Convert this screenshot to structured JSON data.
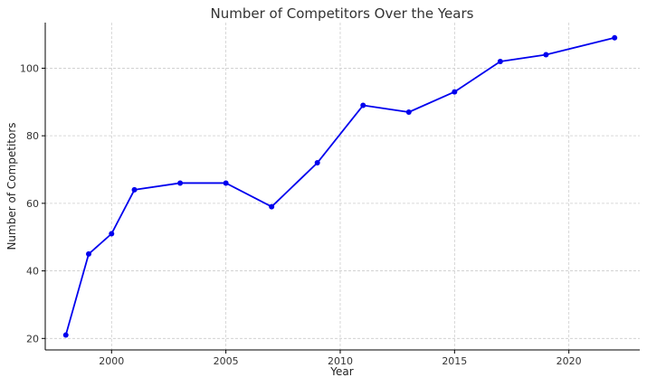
{
  "chart_data": {
    "type": "line",
    "title": "Number of Competitors Over the Years",
    "xlabel": "Year",
    "ylabel": "Number of Competitors",
    "xlim": [
      1997.1,
      2023.1
    ],
    "ylim": [
      16.6,
      113.5
    ],
    "xticks": [
      2000,
      2005,
      2010,
      2015,
      2020
    ],
    "yticks": [
      20,
      40,
      60,
      80,
      100
    ],
    "grid": true,
    "legend": "none",
    "series": [
      {
        "color": "#0000ee",
        "x": [
          1998,
          1999,
          2000,
          2001,
          2003,
          2005,
          2007,
          2009,
          2011,
          2013,
          2015,
          2017,
          2019,
          2022
        ],
        "values": [
          21,
          45,
          51,
          64,
          66,
          66,
          59,
          72,
          89,
          87,
          93,
          102,
          104,
          109
        ]
      }
    ]
  }
}
